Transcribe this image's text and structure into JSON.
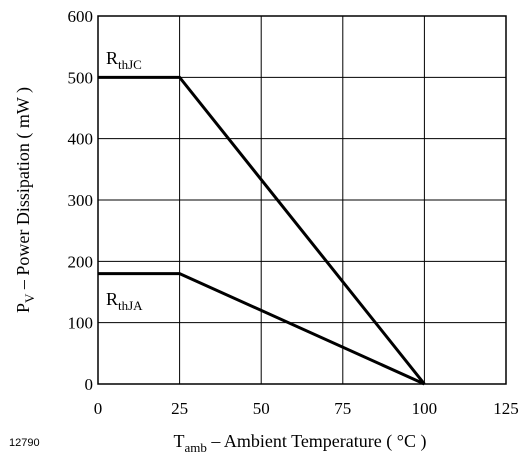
{
  "chart_data": {
    "type": "line",
    "xlabel": "T",
    "xlabel_sub": "amb",
    "xlabel_rest": " – Ambient Temperature ( °C )",
    "ylabel": "P",
    "ylabel_sub": "V",
    "ylabel_rest": " – Power Dissipation ( mW )",
    "xlim": [
      0,
      125
    ],
    "ylim": [
      0,
      600
    ],
    "xticks": [
      0,
      25,
      50,
      75,
      100,
      125
    ],
    "yticks": [
      0,
      100,
      200,
      300,
      400,
      500,
      600
    ],
    "grid": true,
    "series": [
      {
        "name": "R",
        "name_sub": "thJC",
        "x": [
          0,
          25,
          100
        ],
        "y": [
          500,
          500,
          0
        ]
      },
      {
        "name": "R",
        "name_sub": "thJA",
        "x": [
          0,
          25,
          100
        ],
        "y": [
          180,
          180,
          0
        ]
      }
    ],
    "figure_id": "12790"
  }
}
